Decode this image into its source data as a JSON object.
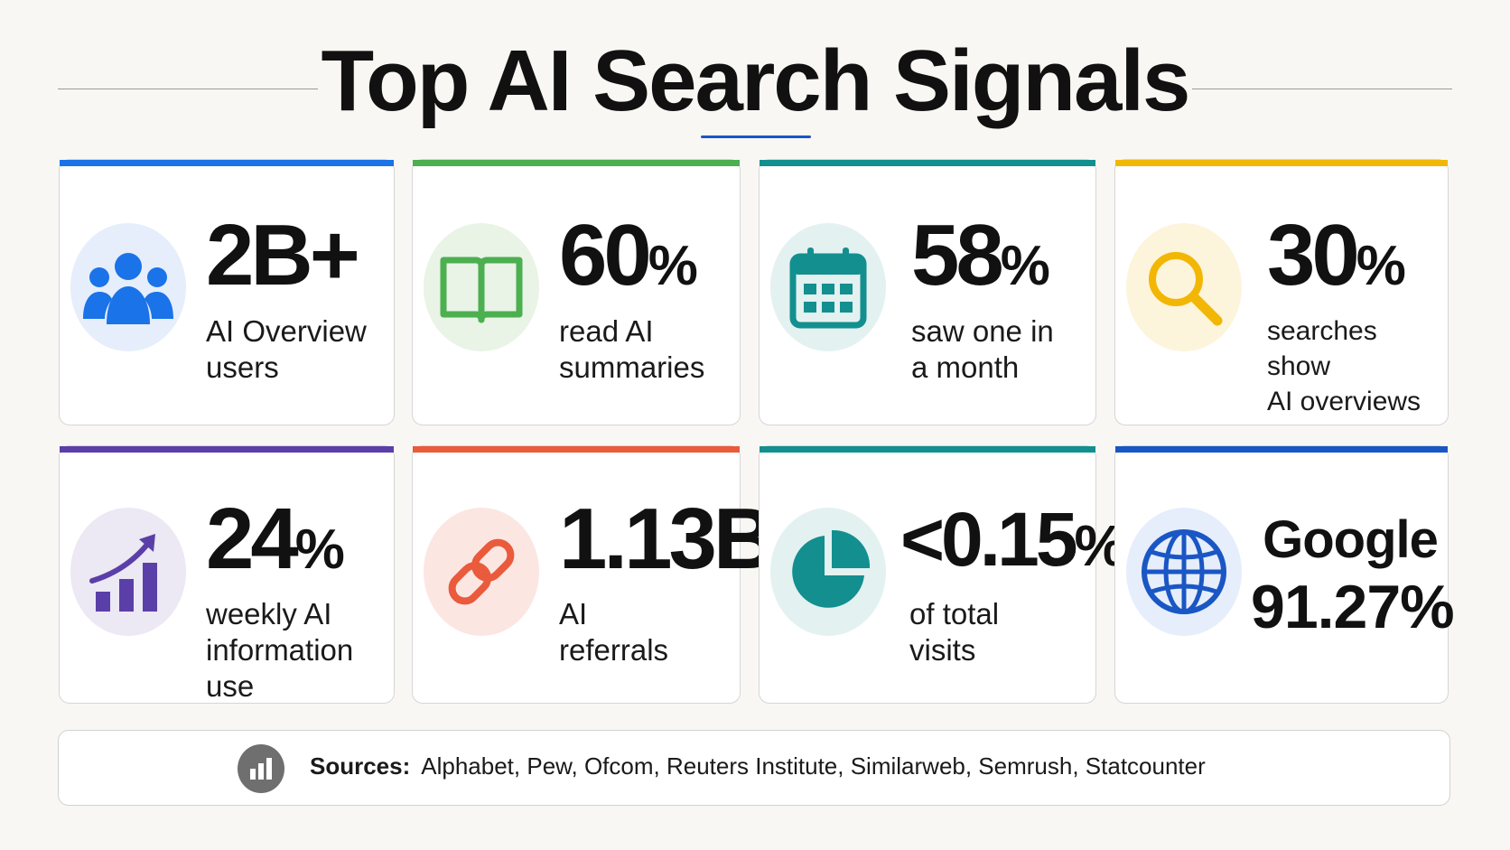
{
  "title": "Top AI Search Signals",
  "colors": {
    "background": "#f8f7f3",
    "blue": "#1a73e8",
    "green": "#4caf50",
    "teal": "#138f8f",
    "yellow": "#f2b705",
    "purple": "#5b3fa8",
    "red": "#ea5a3c"
  },
  "cards": [
    {
      "stat": "2B+",
      "unit": "",
      "label": "AI Overview\nusers",
      "icon": "users-icon",
      "accent": "#1a73e8"
    },
    {
      "stat": "60",
      "unit": "%",
      "label": "read AI\nsummaries",
      "icon": "open-book-icon",
      "accent": "#4caf50"
    },
    {
      "stat": "58",
      "unit": "%",
      "label": "saw one in\na month",
      "icon": "calendar-icon",
      "accent": "#138f8f"
    },
    {
      "stat": "30",
      "unit": "%",
      "label": "searches show\nAI overviews",
      "icon": "magnifier-icon",
      "accent": "#f2b705"
    },
    {
      "stat": "24",
      "unit": "%",
      "label": "weekly AI\ninformation use",
      "icon": "trend-chart-icon",
      "accent": "#5b3fa8"
    },
    {
      "stat": "1.13B",
      "unit": "",
      "label": "AI\nreferrals",
      "icon": "link-icon",
      "accent": "#ea5a3c"
    },
    {
      "stat": "<0.15",
      "unit": "%",
      "label": "of total\nvisits",
      "icon": "pie-chart-icon",
      "accent": "#138f8f"
    },
    {
      "stat_line1": "Google",
      "stat_line2": "91.27%",
      "icon": "globe-icon",
      "accent": "#1a56c4"
    }
  ],
  "sources": {
    "label": "Sources:",
    "text": "Alphabet, Pew, Ofcom, Reuters Institute, Similarweb, Semrush, Statcounter",
    "icon": "bar-chart-icon"
  }
}
